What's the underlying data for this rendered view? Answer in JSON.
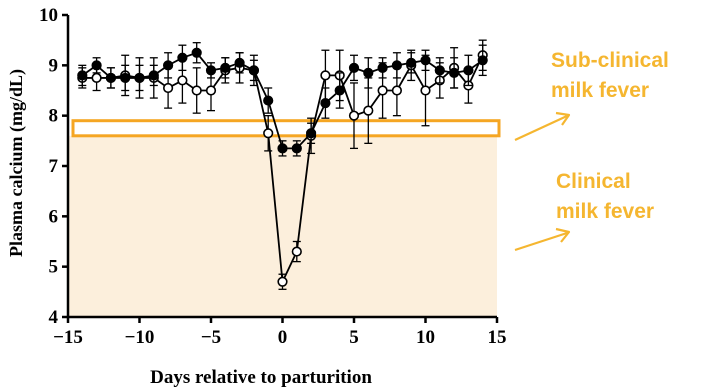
{
  "chart_data": {
    "type": "line",
    "xlabel": "Days relative to parturition",
    "ylabel": "Plasma calcium (mg/dL)",
    "xlim": [
      -15,
      15
    ],
    "ylim": [
      4,
      10
    ],
    "xticks": [
      -15,
      -10,
      -5,
      0,
      5,
      10,
      15
    ],
    "yticks": [
      4,
      5,
      6,
      7,
      8,
      9,
      10
    ],
    "xtick_labels": [
      "−15",
      "−10",
      "−5",
      "0",
      "5",
      "10",
      "15"
    ],
    "ytick_labels": [
      "4",
      "5",
      "6",
      "7",
      "8",
      "9",
      "10"
    ],
    "grid": false,
    "legend": "none",
    "series": [
      {
        "marker": "filled-circle",
        "color": "#000000",
        "x": [
          -14,
          -13,
          -12,
          -11,
          -10,
          -9,
          -8,
          -7,
          -6,
          -5,
          -4,
          -3,
          -2,
          -1,
          0,
          1,
          2,
          3,
          4,
          5,
          6,
          7,
          8,
          9,
          10,
          11,
          12,
          13,
          14
        ],
        "y": [
          8.8,
          9.0,
          8.75,
          8.75,
          8.75,
          8.8,
          9.0,
          9.15,
          9.25,
          8.9,
          8.95,
          9.05,
          8.9,
          8.3,
          7.35,
          7.35,
          7.65,
          8.25,
          8.5,
          8.95,
          8.85,
          8.95,
          9.0,
          9.05,
          9.1,
          8.9,
          8.85,
          8.9,
          9.1
        ],
        "err": [
          0.2,
          0.15,
          0.2,
          0.25,
          0.25,
          0.2,
          0.25,
          0.25,
          0.2,
          0.15,
          0.2,
          0.2,
          0.2,
          0.25,
          0.15,
          0.15,
          0.2,
          0.3,
          0.35,
          0.25,
          0.3,
          0.2,
          0.25,
          0.2,
          0.2,
          0.25,
          0.3,
          0.3,
          0.3
        ]
      },
      {
        "marker": "open-circle",
        "color": "#000000",
        "x": [
          -14,
          -13,
          -12,
          -11,
          -10,
          -9,
          -8,
          -7,
          -6,
          -5,
          -4,
          -3,
          -2,
          -1,
          0,
          1,
          2,
          3,
          4,
          5,
          6,
          7,
          8,
          9,
          10,
          11,
          12,
          13,
          14
        ],
        "y": [
          8.75,
          8.75,
          8.75,
          8.8,
          8.75,
          8.75,
          8.55,
          8.7,
          8.5,
          8.5,
          8.9,
          8.95,
          8.9,
          7.65,
          4.7,
          5.3,
          7.6,
          8.8,
          8.8,
          8.0,
          8.1,
          8.5,
          8.5,
          9.0,
          8.5,
          8.7,
          8.95,
          8.6,
          9.2
        ],
        "err": [
          0.2,
          0.25,
          0.2,
          0.4,
          0.4,
          0.4,
          0.4,
          0.45,
          0.45,
          0.4,
          0.25,
          0.3,
          0.3,
          0.35,
          0.15,
          0.2,
          0.35,
          0.5,
          0.5,
          0.65,
          0.65,
          0.55,
          0.5,
          0.3,
          0.7,
          0.35,
          0.4,
          0.35,
          0.3
        ]
      }
    ],
    "regions": [
      {
        "label": "Clinical milk fever",
        "y_from": 4,
        "y_to": 7.6,
        "color": "#fcefdc"
      },
      {
        "label": "Sub-clinical milk fever",
        "y_from": 7.6,
        "y_to": 7.9,
        "color": "#f5a623"
      }
    ],
    "annotations": [
      {
        "lines": [
          "Sub-clinical",
          "milk fever"
        ],
        "color": "#f5b630"
      },
      {
        "lines": [
          "Clinical",
          "milk fever"
        ],
        "color": "#f5b630"
      }
    ]
  },
  "colors": {
    "accent": "#f5a623",
    "shade": "#fcefdc",
    "annotation": "#f5b630"
  }
}
